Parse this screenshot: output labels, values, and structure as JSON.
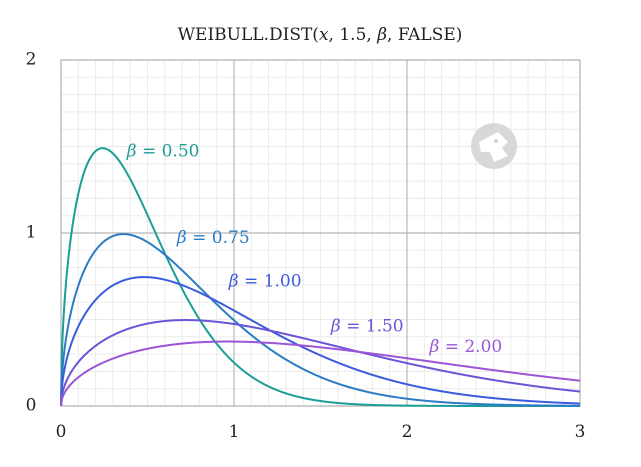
{
  "chart_data": {
    "type": "line",
    "title_text": "WEIBULL.DIST(",
    "title_var": "x",
    "title_rest": ", 1.5, ",
    "title_beta": "β",
    "title_end": ", FALSE)",
    "xlim": [
      0,
      3
    ],
    "ylim": [
      0,
      2
    ],
    "x_ticks": [
      0,
      1,
      2,
      3
    ],
    "x_tick_labels": [
      "0",
      "1",
      "2",
      "3"
    ],
    "y_ticks": [
      0,
      1,
      2
    ],
    "y_tick_labels": [
      "0",
      "1",
      "2"
    ],
    "grid": true,
    "alpha": 1.5,
    "cumulative": false,
    "series": [
      {
        "name": "β = 0.50",
        "beta": 0.5,
        "symbol": "β",
        "value_text": "= 0.50",
        "color": "#1a9e96",
        "label_at": [
          0.38,
          1.47
        ]
      },
      {
        "name": "β = 0.75",
        "beta": 0.75,
        "symbol": "β",
        "value_text": "= 0.75",
        "color": "#2b7cc4",
        "label_at": [
          0.67,
          0.97
        ]
      },
      {
        "name": "β = 1.00",
        "beta": 1.0,
        "symbol": "β",
        "value_text": "= 1.00",
        "color": "#3b5ddc",
        "label_at": [
          0.97,
          0.72
        ]
      },
      {
        "name": "β = 1.50",
        "beta": 1.5,
        "symbol": "β",
        "value_text": "= 1.50",
        "color": "#6a55d6",
        "label_at": [
          1.56,
          0.46
        ]
      },
      {
        "name": "β = 2.00",
        "beta": 2.0,
        "symbol": "β",
        "value_text": "= 2.00",
        "color": "#9b55d6",
        "label_at": [
          2.13,
          0.34
        ]
      }
    ]
  }
}
